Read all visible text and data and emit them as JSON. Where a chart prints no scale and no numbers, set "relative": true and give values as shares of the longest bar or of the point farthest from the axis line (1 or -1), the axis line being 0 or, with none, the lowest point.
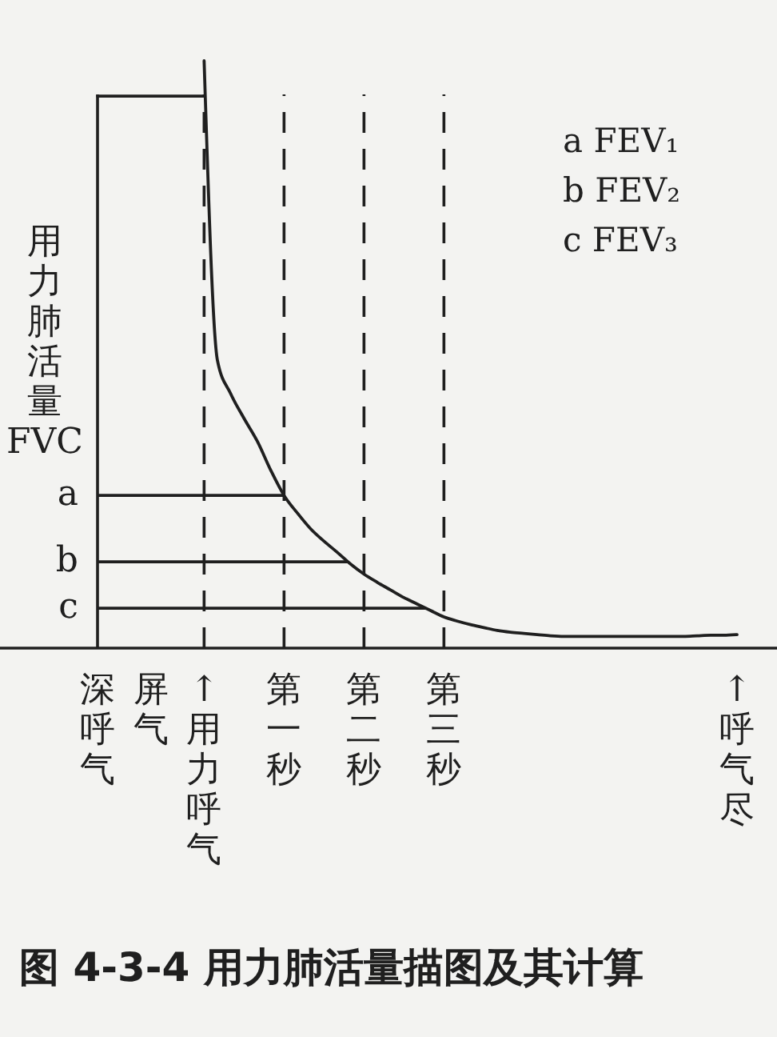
{
  "chart_data": {
    "type": "line",
    "title": "图 4-3-4 用力肺活量描图及其计算",
    "ylabel": "用力肺活量 FVC",
    "relative": true,
    "categories": [
      "深呼气",
      null,
      null,
      null,
      "屏气",
      null,
      null,
      null,
      "↑用力呼气",
      null,
      null,
      null,
      null,
      null,
      "第一秒",
      null,
      null,
      null,
      null,
      null,
      "第二秒",
      null,
      null,
      null,
      null,
      null,
      "第三秒",
      null,
      null,
      null,
      null,
      null,
      null,
      null,
      null,
      null,
      null,
      null,
      null,
      null,
      null,
      null,
      null,
      null,
      null,
      null,
      null,
      null,
      "↑呼气尽"
    ],
    "series": [
      {
        "color": "#1f1f1f",
        "values": [
          0.94,
          0.94,
          0.94,
          0.94,
          0.94,
          0.94,
          0.94,
          0.94,
          0.94,
          null,
          null,
          null,
          null,
          null,
          null,
          null,
          null,
          null,
          null,
          null,
          null,
          null,
          null,
          null,
          null,
          null,
          null,
          null,
          null,
          null,
          null,
          null,
          null,
          null,
          null,
          null,
          null,
          null,
          null,
          null,
          null,
          null,
          null,
          null,
          null,
          null,
          null,
          null,
          null
        ]
      },
      {
        "color": "#1f1f1f",
        "values": [
          null,
          null,
          null,
          null,
          null,
          null,
          null,
          null,
          1.0,
          0.49,
          0.433,
          0.391,
          0.352,
          0.303,
          0.26,
          0.23,
          0.203,
          0.182,
          0.163,
          0.143,
          0.126,
          0.112,
          0.099,
          0.086,
          0.075,
          0.064,
          0.053,
          0.046,
          0.04,
          0.035,
          0.03,
          0.027,
          0.025,
          0.023,
          0.021,
          0.02,
          0.02,
          0.02,
          0.02,
          0.02,
          0.02,
          0.02,
          0.02,
          0.02,
          0.02,
          0.021,
          0.022,
          0.022,
          0.023
        ]
      }
    ],
    "ref_lines": [
      {
        "axis": "y",
        "value": 0.26,
        "label": "a"
      },
      {
        "axis": "y",
        "value": 0.147,
        "label": "b"
      },
      {
        "axis": "y",
        "value": 0.068,
        "label": "c"
      },
      {
        "axis": "x",
        "value": "深呼气"
      },
      {
        "axis": "x",
        "value": "↑用力呼气",
        "line_style": "dashed"
      },
      {
        "axis": "x",
        "value": "第一秒",
        "line_style": "dashed"
      },
      {
        "axis": "x",
        "value": "第二秒",
        "line_style": "dashed"
      },
      {
        "axis": "x",
        "value": "第三秒",
        "line_style": "dashed"
      }
    ],
    "annotations": [
      "a FEV₁",
      "b FEV₂",
      "c FEV₃"
    ]
  }
}
